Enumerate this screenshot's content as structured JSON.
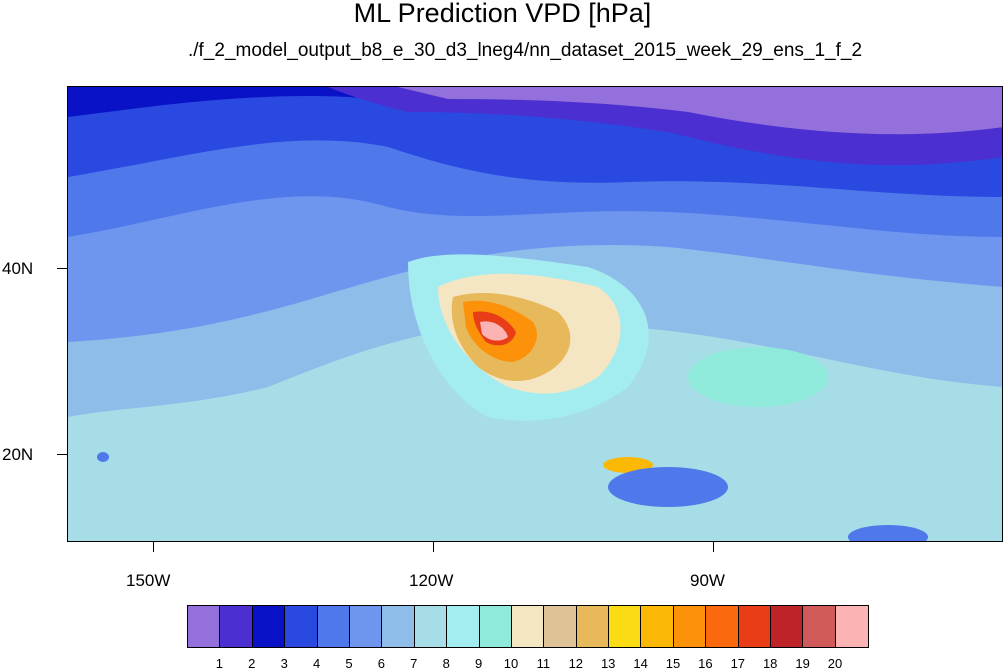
{
  "title": "ML Prediction VPD [hPa]",
  "subtitle": "./f_2_model_output_b8_e_30_d3_lneg4/nn_dataset_2015_week_29_ens_1_f_2",
  "axes": {
    "lon_labels": [
      "150W",
      "120W",
      "90W"
    ],
    "lat_labels": [
      "40N",
      "20N"
    ]
  },
  "colorbar": {
    "colors": [
      "#9370db",
      "#4b2fd0",
      "#0a12c8",
      "#2a49e0",
      "#4f79ea",
      "#6f96ee",
      "#8fbde9",
      "#a6dde6",
      "#a3ecef",
      "#90eadc",
      "#f4e6c3",
      "#dfc396",
      "#e7b95a",
      "#fbdc14",
      "#fbb906",
      "#fb9209",
      "#fb690f",
      "#e93d18",
      "#be2427",
      "#d05a5a",
      "#fbb3b3"
    ],
    "labels": [
      "1",
      "2",
      "3",
      "4",
      "5",
      "6",
      "7",
      "8",
      "9",
      "10",
      "11",
      "12",
      "13",
      "14",
      "15",
      "16",
      "17",
      "18",
      "19",
      "20"
    ]
  }
}
